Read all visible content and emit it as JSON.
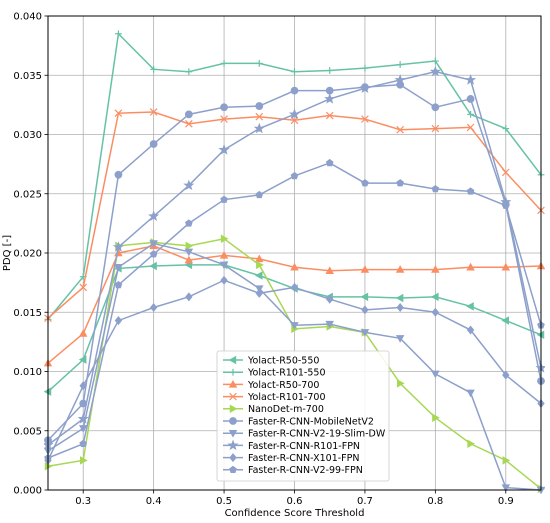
{
  "chart_data": {
    "type": "line",
    "title": "",
    "xlabel": "Confidence Score Threshold",
    "ylabel": "PDQ [-]",
    "xlim": [
      0.25,
      0.95
    ],
    "ylim": [
      0.0,
      0.04
    ],
    "x_ticks": [
      0.3,
      0.4,
      0.5,
      0.6,
      0.7,
      0.8,
      0.9
    ],
    "x_tick_labels": [
      "0.3",
      "0.4",
      "0.5",
      "0.6",
      "0.7",
      "0.8",
      "0.9"
    ],
    "y_ticks": [
      0.0,
      0.005,
      0.01,
      0.015,
      0.02,
      0.025,
      0.03,
      0.035,
      0.04
    ],
    "y_tick_labels": [
      "0.000",
      "0.005",
      "0.010",
      "0.015",
      "0.020",
      "0.025",
      "0.030",
      "0.035",
      "0.040"
    ],
    "grid": true,
    "legend_position": "lower-center",
    "x": [
      0.25,
      0.3,
      0.35,
      0.4,
      0.45,
      0.5,
      0.55,
      0.6,
      0.65,
      0.7,
      0.75,
      0.8,
      0.85,
      0.9,
      0.95
    ],
    "series": [
      {
        "name": "Yolact-R50-550",
        "color": "#66c2a5",
        "marker": "triangle-left",
        "values": [
          0.0083,
          0.011,
          0.0187,
          0.0189,
          0.019,
          0.019,
          0.0181,
          0.017,
          0.0163,
          0.0163,
          0.0162,
          0.0163,
          0.0155,
          0.0143,
          0.0131
        ]
      },
      {
        "name": "Yolact-R101-550",
        "color": "#66c2a5",
        "marker": "plus",
        "values": [
          0.0144,
          0.018,
          0.0385,
          0.0355,
          0.0353,
          0.036,
          0.036,
          0.0353,
          0.0354,
          0.0356,
          0.0359,
          0.0362,
          0.0317,
          0.0305,
          0.0266
        ]
      },
      {
        "name": "Yolact-R50-700",
        "color": "#fc8d62",
        "marker": "triangle-up",
        "values": [
          0.0107,
          0.0132,
          0.02,
          0.0206,
          0.0194,
          0.0198,
          0.0195,
          0.0188,
          0.0185,
          0.0186,
          0.0186,
          0.0186,
          0.0188,
          0.0188,
          0.0189
        ]
      },
      {
        "name": "Yolact-R101-700",
        "color": "#fc8d62",
        "marker": "x",
        "values": [
          0.0145,
          0.0171,
          0.0318,
          0.0319,
          0.0309,
          0.0313,
          0.0315,
          0.0312,
          0.0316,
          0.0313,
          0.0304,
          0.0305,
          0.0306,
          0.0268,
          0.0236
        ]
      },
      {
        "name": "NanoDet-m-700",
        "color": "#a6d854",
        "marker": "triangle-right",
        "values": [
          0.002,
          0.0025,
          0.0206,
          0.0209,
          0.0206,
          0.0212,
          0.019,
          0.0136,
          0.0138,
          0.0133,
          0.009,
          0.0061,
          0.0039,
          0.0025,
          0.0001
        ]
      },
      {
        "name": "Faster-R-CNN-MobileNetV2",
        "color": "#8da0cb",
        "marker": "circle",
        "values": [
          0.0042,
          0.0073,
          0.0266,
          0.0292,
          0.0317,
          0.0323,
          0.0324,
          0.0337,
          0.0337,
          0.034,
          0.0342,
          0.0323,
          0.033,
          0.0241,
          0.0092
        ]
      },
      {
        "name": "Faster-R-CNN-V2-19-Slim-DW",
        "color": "#8da0cb",
        "marker": "triangle-down",
        "values": [
          0.0033,
          0.0052,
          0.0188,
          0.0208,
          0.0201,
          0.019,
          0.017,
          0.0139,
          0.014,
          0.0133,
          0.0128,
          0.0098,
          0.0082,
          0.0002,
          0.0
        ]
      },
      {
        "name": "Faster-R-CNN-R101-FPN",
        "color": "#8da0cb",
        "marker": "star",
        "values": [
          0.0038,
          0.006,
          0.0205,
          0.0231,
          0.0257,
          0.0287,
          0.0305,
          0.0317,
          0.033,
          0.0339,
          0.0346,
          0.0353,
          0.0346,
          0.0243,
          0.0103
        ]
      },
      {
        "name": "Faster-R-CNN-X101-FPN",
        "color": "#8da0cb",
        "marker": "diamond",
        "values": [
          0.0025,
          0.0088,
          0.0143,
          0.0154,
          0.0163,
          0.0177,
          0.0166,
          0.0171,
          0.0161,
          0.0152,
          0.0154,
          0.015,
          0.0135,
          0.0097,
          0.0073
        ]
      },
      {
        "name": "Faster-R-CNN-V2-99-FPN",
        "color": "#8da0cb",
        "marker": "pentagon",
        "values": [
          0.0027,
          0.0039,
          0.0173,
          0.0199,
          0.0225,
          0.0245,
          0.0249,
          0.0265,
          0.0276,
          0.0259,
          0.0259,
          0.0254,
          0.0252,
          0.024,
          0.0139
        ]
      }
    ]
  }
}
